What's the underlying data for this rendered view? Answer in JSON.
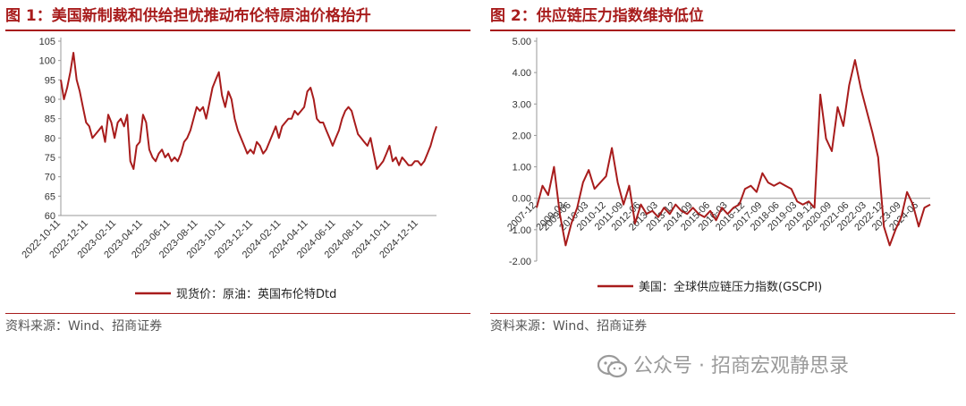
{
  "figure1": {
    "title": "图 1：美国新制裁和供给担忧推动布伦特原油价格抬升",
    "source": "资料来源：Wind、招商证券",
    "chart_data": {
      "type": "line",
      "title": "",
      "xlabel": "",
      "ylabel": "",
      "ylim": [
        60,
        105
      ],
      "y_ticks": [
        60,
        65,
        70,
        75,
        80,
        85,
        90,
        95,
        100,
        105
      ],
      "x_start": "2022-10-11",
      "x_end": "2025-01-20",
      "x_tick_labels": [
        "2022-10-11",
        "2022-12-11",
        "2023-02-11",
        "2023-04-11",
        "2023-06-11",
        "2023-08-11",
        "2023-10-11",
        "2023-12-11",
        "2024-02-11",
        "2024-04-11",
        "2024-06-11",
        "2024-08-11",
        "2024-10-11",
        "2024-12-11"
      ],
      "legend_position": "bottom",
      "grid": false,
      "series": [
        {
          "name": "现货价：原油：英国布伦特Dtd",
          "color": "#a81c1c",
          "x": [
            "2022-10-11",
            "2022-10-18",
            "2022-10-25",
            "2022-11-01",
            "2022-11-08",
            "2022-11-15",
            "2022-11-22",
            "2022-11-29",
            "2022-12-06",
            "2022-12-13",
            "2022-12-20",
            "2022-12-27",
            "2023-01-03",
            "2023-01-10",
            "2023-01-17",
            "2023-01-24",
            "2023-01-31",
            "2023-02-07",
            "2023-02-14",
            "2023-02-21",
            "2023-02-28",
            "2023-03-07",
            "2023-03-14",
            "2023-03-21",
            "2023-03-28",
            "2023-04-04",
            "2023-04-11",
            "2023-04-18",
            "2023-04-25",
            "2023-05-02",
            "2023-05-09",
            "2023-05-16",
            "2023-05-23",
            "2023-05-30",
            "2023-06-06",
            "2023-06-13",
            "2023-06-20",
            "2023-06-27",
            "2023-07-04",
            "2023-07-11",
            "2023-07-18",
            "2023-07-25",
            "2023-08-01",
            "2023-08-08",
            "2023-08-15",
            "2023-08-22",
            "2023-08-29",
            "2023-09-05",
            "2023-09-12",
            "2023-09-19",
            "2023-09-26",
            "2023-10-03",
            "2023-10-10",
            "2023-10-17",
            "2023-10-24",
            "2023-10-31",
            "2023-11-07",
            "2023-11-14",
            "2023-11-21",
            "2023-11-28",
            "2023-12-05",
            "2023-12-12",
            "2023-12-19",
            "2023-12-26",
            "2024-01-02",
            "2024-01-09",
            "2024-01-16",
            "2024-01-23",
            "2024-01-30",
            "2024-02-06",
            "2024-02-13",
            "2024-02-20",
            "2024-02-27",
            "2024-03-05",
            "2024-03-12",
            "2024-03-19",
            "2024-03-26",
            "2024-04-02",
            "2024-04-09",
            "2024-04-16",
            "2024-04-23",
            "2024-04-30",
            "2024-05-07",
            "2024-05-14",
            "2024-05-21",
            "2024-05-28",
            "2024-06-04",
            "2024-06-11",
            "2024-06-18",
            "2024-06-25",
            "2024-07-02",
            "2024-07-09",
            "2024-07-16",
            "2024-07-23",
            "2024-07-30",
            "2024-08-06",
            "2024-08-13",
            "2024-08-20",
            "2024-08-27",
            "2024-09-03",
            "2024-09-10",
            "2024-09-17",
            "2024-09-24",
            "2024-10-01",
            "2024-10-08",
            "2024-10-15",
            "2024-10-22",
            "2024-10-29",
            "2024-11-05",
            "2024-11-12",
            "2024-11-19",
            "2024-11-26",
            "2024-12-03",
            "2024-12-10",
            "2024-12-17",
            "2024-12-24",
            "2024-12-31",
            "2025-01-07",
            "2025-01-14",
            "2025-01-20"
          ],
          "y": [
            95,
            90,
            93,
            97,
            102,
            95,
            92,
            88,
            84,
            83,
            80,
            81,
            82,
            83,
            79,
            86,
            84,
            80,
            84,
            85,
            83,
            86,
            74,
            72,
            78,
            79,
            86,
            84,
            77,
            75,
            74,
            76,
            77,
            75,
            76,
            74,
            75,
            74,
            76,
            79,
            80,
            82,
            85,
            88,
            87,
            88,
            85,
            89,
            93,
            95,
            97,
            91,
            88,
            92,
            90,
            85,
            82,
            80,
            78,
            76,
            77,
            76,
            79,
            78,
            76,
            77,
            79,
            81,
            83,
            80,
            83,
            84,
            85,
            85,
            87,
            86,
            87,
            88,
            92,
            93,
            90,
            85,
            84,
            84,
            82,
            80,
            78,
            80,
            82,
            85,
            87,
            88,
            87,
            84,
            81,
            80,
            79,
            78,
            80,
            76,
            72,
            73,
            74,
            76,
            78,
            74,
            75,
            73,
            75,
            74,
            73,
            73,
            74,
            74,
            73,
            74,
            76,
            78,
            81,
            83
          ]
        }
      ]
    }
  },
  "figure2": {
    "title": "图 2：供应链压力指数维持低位",
    "source": "资料来源：Wind、招商证券",
    "chart_data": {
      "type": "line",
      "title": "",
      "xlabel": "",
      "ylabel": "",
      "ylim": [
        -2.0,
        5.0
      ],
      "y_ticks": [
        "-2.00",
        "-1.00",
        "0.00",
        "1.00",
        "2.00",
        "3.00",
        "4.00",
        "5.00"
      ],
      "x_start": "2007-12",
      "x_end": "2024-12",
      "x_tick_labels": [
        "2007-12",
        "2009-03",
        "2009-06",
        "2010-03",
        "2010-12",
        "2011-09",
        "2012-06",
        "2013-03",
        "2013-12",
        "2014-09",
        "2015-06",
        "2016-03",
        "2016-12",
        "2017-09",
        "2018-06",
        "2019-03",
        "2019-12",
        "2020-09",
        "2021-06",
        "2022-03",
        "2022-12",
        "2023-09",
        "2024-06"
      ],
      "legend_position": "bottom",
      "grid": false,
      "series": [
        {
          "name": "美国：全球供应链压力指数(GSCPI)",
          "color": "#a81c1c",
          "x": [
            "2007-12",
            "2008-03",
            "2008-06",
            "2008-09",
            "2008-12",
            "2009-03",
            "2009-06",
            "2009-09",
            "2009-12",
            "2010-03",
            "2010-06",
            "2010-09",
            "2010-12",
            "2011-03",
            "2011-06",
            "2011-09",
            "2011-12",
            "2012-03",
            "2012-06",
            "2012-09",
            "2012-12",
            "2013-03",
            "2013-06",
            "2013-09",
            "2013-12",
            "2014-03",
            "2014-06",
            "2014-09",
            "2014-12",
            "2015-03",
            "2015-06",
            "2015-09",
            "2015-12",
            "2016-03",
            "2016-06",
            "2016-09",
            "2016-12",
            "2017-03",
            "2017-06",
            "2017-09",
            "2017-12",
            "2018-03",
            "2018-06",
            "2018-09",
            "2018-12",
            "2019-03",
            "2019-06",
            "2019-09",
            "2019-12",
            "2020-03",
            "2020-06",
            "2020-09",
            "2020-12",
            "2021-03",
            "2021-06",
            "2021-09",
            "2021-12",
            "2022-03",
            "2022-06",
            "2022-09",
            "2022-12",
            "2023-03",
            "2023-06",
            "2023-09",
            "2023-12",
            "2024-03",
            "2024-06",
            "2024-09",
            "2024-12"
          ],
          "y": [
            -0.3,
            0.4,
            0.1,
            1.0,
            -0.5,
            -1.5,
            -0.8,
            -0.3,
            0.5,
            0.9,
            0.3,
            0.5,
            0.7,
            1.6,
            0.5,
            -0.2,
            0.4,
            -0.8,
            -0.2,
            -0.5,
            -0.4,
            -0.6,
            -0.3,
            -0.5,
            -0.2,
            -0.4,
            -0.5,
            -0.3,
            -0.5,
            -0.6,
            -0.4,
            -0.7,
            -0.3,
            -0.5,
            -0.3,
            -0.2,
            0.3,
            0.4,
            0.2,
            0.8,
            0.5,
            0.4,
            0.5,
            0.4,
            0.3,
            -0.1,
            -0.2,
            -0.1,
            -0.3,
            3.3,
            1.9,
            1.5,
            2.9,
            2.3,
            3.6,
            4.4,
            3.5,
            2.8,
            2.1,
            1.3,
            -0.9,
            -1.5,
            -1.0,
            -0.6,
            0.2,
            -0.2,
            -0.9,
            -0.3,
            -0.2
          ]
        }
      ]
    }
  },
  "watermark": {
    "text": "公众号 · 招商宏观静思录",
    "icon": "wechat-icon"
  }
}
